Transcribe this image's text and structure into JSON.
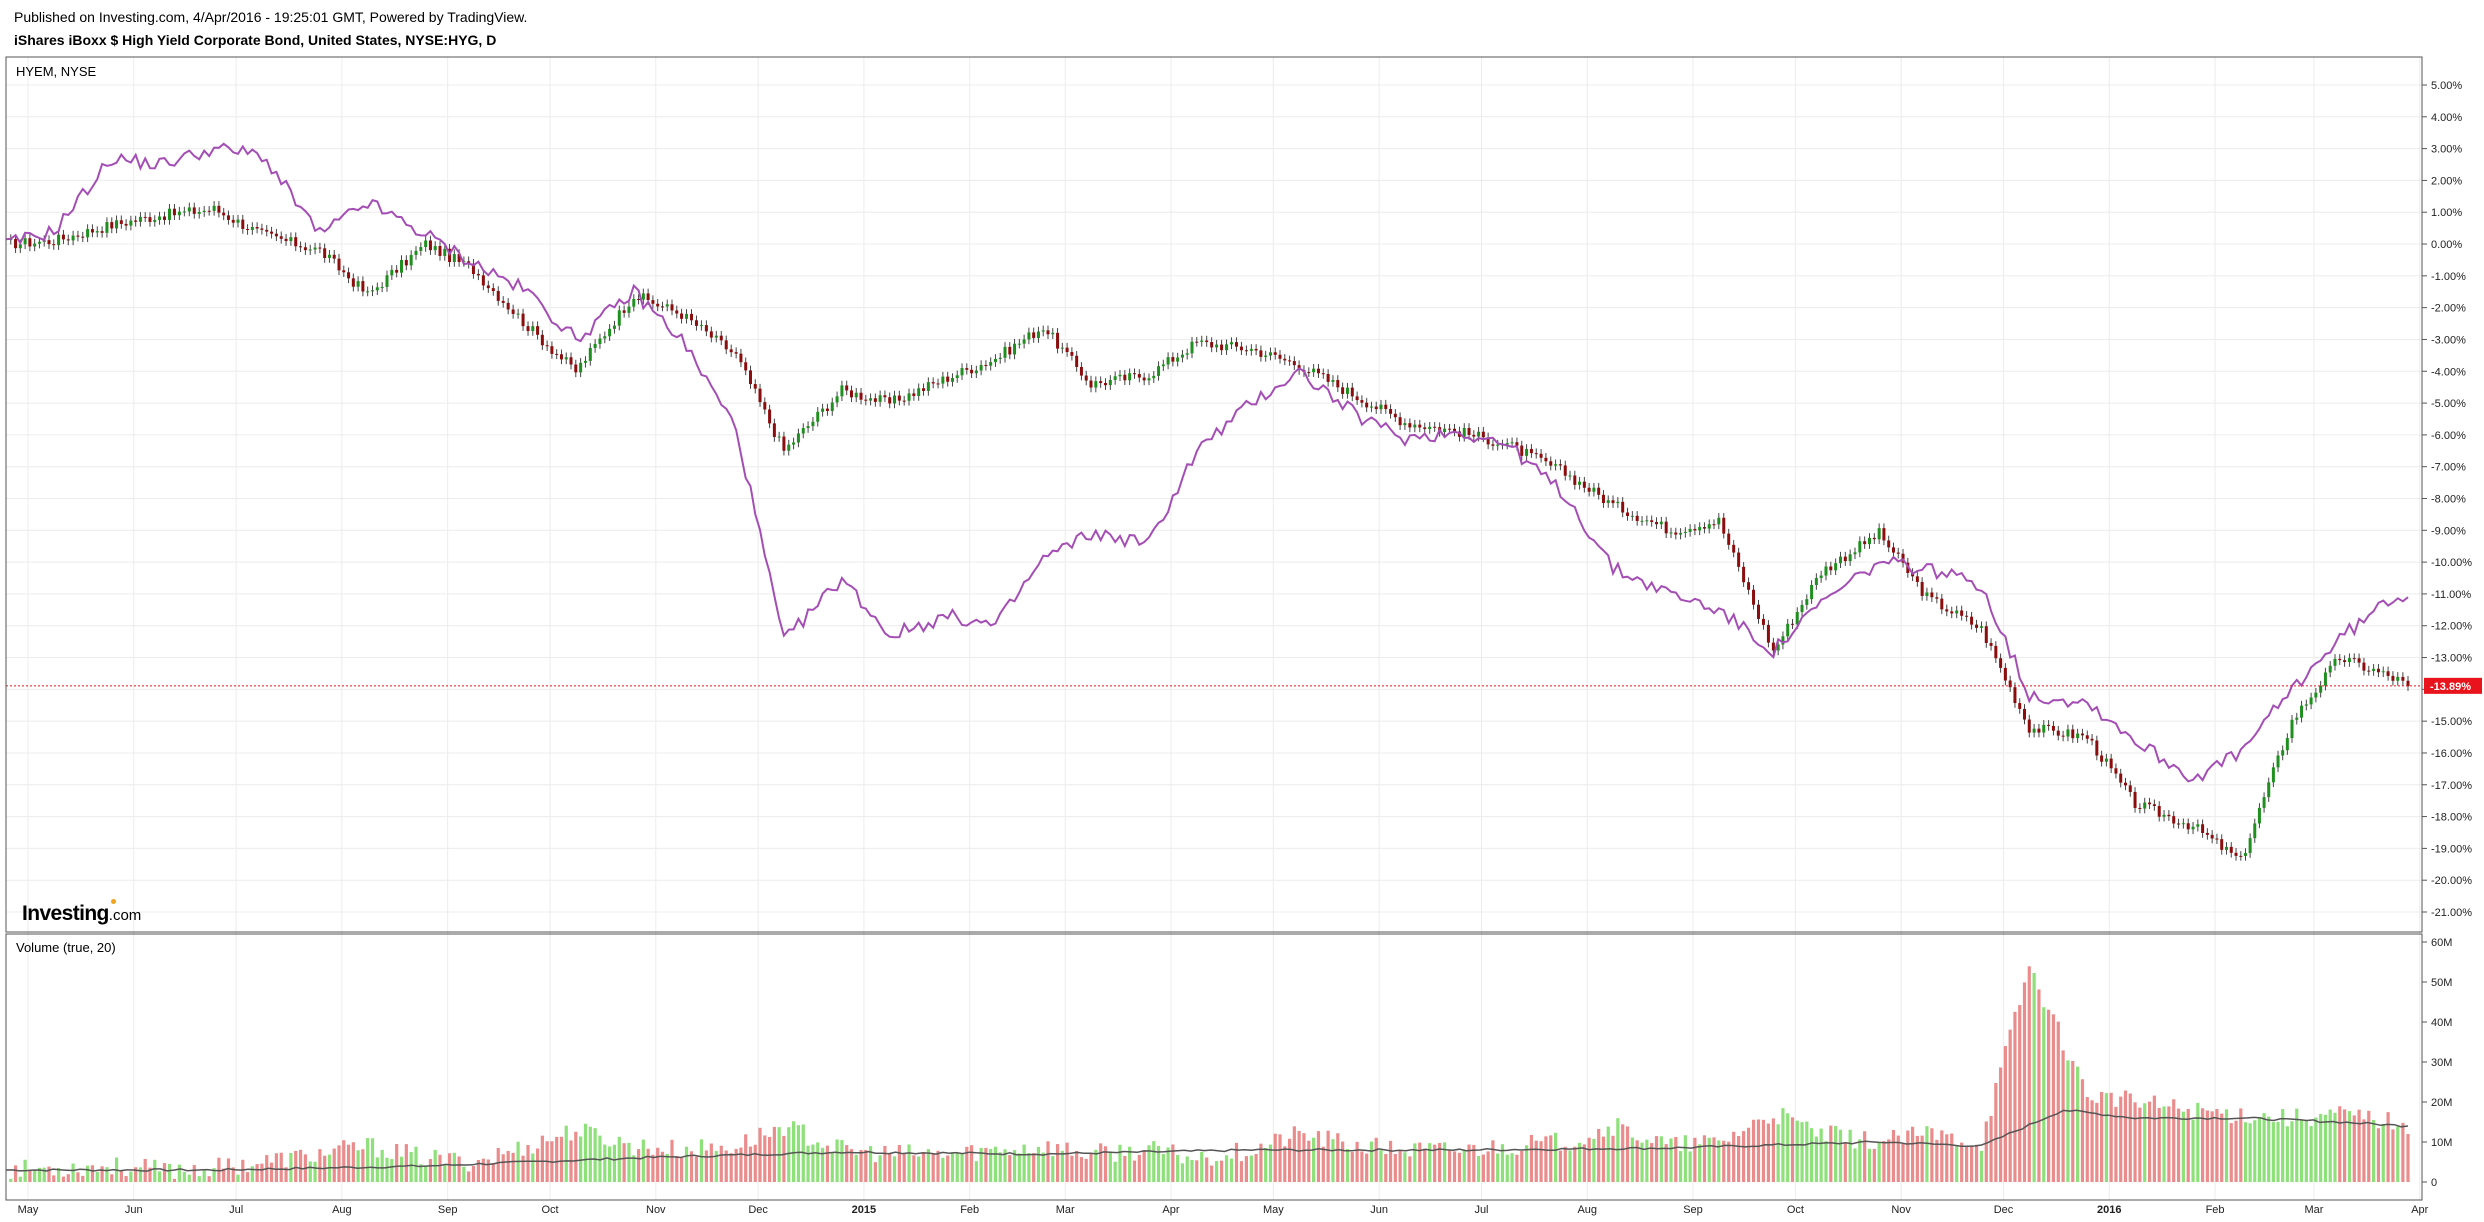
{
  "header": {
    "published": "Published on Investing.com, 4/Apr/2016 - 19:25:01 GMT, Powered by TradingView.",
    "title": "iShares iBoxx $ High Yield Corporate Bond, United States, NYSE:HYG, D"
  },
  "main_pane": {
    "label": "HYEM, NYSE"
  },
  "volume_pane": {
    "label": "Volume (true, 20)"
  },
  "logo": {
    "text": "Investing",
    "suffix": ".com"
  },
  "colors": {
    "up": "#1f8f1f",
    "down": "#8b0d0d",
    "compare_line": "#a44eb5",
    "volume_up": "#8ee07a",
    "volume_down": "#ea8c8c",
    "volume_ma": "#555555",
    "last_price": "#e8131b",
    "grid": "#ececec"
  },
  "chart_data": [
    {
      "type": "line",
      "title": "iShares iBoxx $ High Yield Corporate Bond, United States, NYSE:HYG, D",
      "xlabel": "",
      "ylabel": "",
      "y_unit": "%",
      "ylim": [
        -21.5,
        5.5
      ],
      "y_ticks": [
        "5.00%",
        "4.00%",
        "3.00%",
        "2.00%",
        "1.00%",
        "0.00%",
        "-1.00%",
        "-2.00%",
        "-3.00%",
        "-4.00%",
        "-5.00%",
        "-6.00%",
        "-7.00%",
        "-8.00%",
        "-9.00%",
        "-10.00%",
        "-11.00%",
        "-12.00%",
        "-13.00%",
        "-14.00%",
        "-15.00%",
        "-16.00%",
        "-17.00%",
        "-18.00%",
        "-19.00%",
        "-20.00%",
        "-21.00%"
      ],
      "x_ticks": [
        "May",
        "Jun",
        "Jul",
        "Aug",
        "Sep",
        "Oct",
        "Nov",
        "Dec",
        "2015",
        "Feb",
        "Mar",
        "Apr",
        "May",
        "Jun",
        "Jul",
        "Aug",
        "Sep",
        "Oct",
        "Nov",
        "Dec",
        "2016",
        "Feb",
        "Mar",
        "Apr"
      ],
      "last_value_label": "-13.89%",
      "last_value": -13.89,
      "series": [
        {
          "name": "NYSE:HYG",
          "style": "candles",
          "x": [
            "2014-05-01",
            "2014-05-15",
            "2014-06-01",
            "2014-06-15",
            "2014-07-01",
            "2014-07-15",
            "2014-08-01",
            "2014-08-15",
            "2014-09-01",
            "2014-09-15",
            "2014-10-01",
            "2014-10-15",
            "2014-11-01",
            "2014-11-15",
            "2014-12-01",
            "2014-12-15",
            "2015-01-01",
            "2015-01-15",
            "2015-02-01",
            "2015-02-15",
            "2015-03-01",
            "2015-03-15",
            "2015-04-01",
            "2015-04-15",
            "2015-05-01",
            "2015-05-15",
            "2015-06-01",
            "2015-06-15",
            "2015-07-01",
            "2015-07-15",
            "2015-08-01",
            "2015-08-15",
            "2015-09-01",
            "2015-09-15",
            "2015-10-01",
            "2015-10-15",
            "2015-11-01",
            "2015-11-15",
            "2015-12-01",
            "2015-12-15",
            "2016-01-01",
            "2016-01-15",
            "2016-02-01",
            "2016-02-15",
            "2016-03-01",
            "2016-03-15",
            "2016-04-01",
            "2016-04-04"
          ],
          "y": [
            0.0,
            0.1,
            0.6,
            0.9,
            1.1,
            0.3,
            -0.2,
            -1.6,
            0.0,
            -0.8,
            -2.6,
            -4.0,
            -1.6,
            -2.2,
            -3.5,
            -6.5,
            -4.6,
            -5.0,
            -4.2,
            -3.6,
            -2.6,
            -4.4,
            -4.1,
            -3.1,
            -3.3,
            -3.8,
            -4.8,
            -5.6,
            -5.9,
            -6.3,
            -7.2,
            -8.2,
            -9.0,
            -8.7,
            -12.8,
            -10.3,
            -9.1,
            -11.1,
            -12.1,
            -15.2,
            -15.5,
            -17.6,
            -18.3,
            -19.4,
            -15.0,
            -13.0,
            -13.7,
            -13.9
          ]
        },
        {
          "name": "HYEM, NYSE",
          "style": "line",
          "x": [
            "2014-05-01",
            "2014-05-15",
            "2014-06-01",
            "2014-06-15",
            "2014-07-01",
            "2014-07-15",
            "2014-08-01",
            "2014-08-15",
            "2014-09-01",
            "2014-09-15",
            "2014-10-01",
            "2014-10-15",
            "2014-11-01",
            "2014-11-15",
            "2014-12-01",
            "2014-12-15",
            "2015-01-01",
            "2015-01-15",
            "2015-02-01",
            "2015-02-15",
            "2015-03-01",
            "2015-03-15",
            "2015-04-01",
            "2015-04-15",
            "2015-05-01",
            "2015-05-15",
            "2015-06-01",
            "2015-06-15",
            "2015-07-01",
            "2015-07-15",
            "2015-08-01",
            "2015-08-15",
            "2015-09-01",
            "2015-09-15",
            "2015-10-01",
            "2015-10-15",
            "2015-11-01",
            "2015-11-15",
            "2015-12-01",
            "2015-12-15",
            "2016-01-01",
            "2016-01-15",
            "2016-02-01",
            "2016-02-15",
            "2016-03-01",
            "2016-03-15",
            "2016-04-01",
            "2016-04-04"
          ],
          "y": [
            0.0,
            0.4,
            2.7,
            2.5,
            3.0,
            2.8,
            0.3,
            1.3,
            0.3,
            -0.6,
            -1.5,
            -3.0,
            -1.5,
            -3.0,
            -5.8,
            -12.5,
            -10.5,
            -12.3,
            -11.7,
            -12.0,
            -9.9,
            -9.1,
            -9.4,
            -6.5,
            -5.0,
            -4.0,
            -5.4,
            -6.1,
            -5.9,
            -6.3,
            -7.9,
            -10.2,
            -11.0,
            -11.5,
            -12.8,
            -11.3,
            -10.0,
            -10.2,
            -10.7,
            -14.2,
            -14.4,
            -15.6,
            -16.8,
            -16.0,
            -14.0,
            -12.4,
            -11.0,
            -11.1
          ]
        }
      ]
    },
    {
      "type": "bar",
      "title": "Volume (true, 20)",
      "xlabel": "",
      "ylabel": "",
      "ylim": [
        0,
        60000000
      ],
      "y_ticks": [
        "60M",
        "50M",
        "40M",
        "30M",
        "20M",
        "10M",
        "0"
      ],
      "series": [
        {
          "name": "Volume",
          "x": [
            "2014-05-01",
            "2014-05-15",
            "2014-06-01",
            "2014-06-15",
            "2014-07-01",
            "2014-07-15",
            "2014-08-01",
            "2014-08-15",
            "2014-09-01",
            "2014-09-15",
            "2014-10-01",
            "2014-10-15",
            "2014-11-01",
            "2014-11-15",
            "2014-12-01",
            "2014-12-15",
            "2015-01-01",
            "2015-01-15",
            "2015-02-01",
            "2015-02-15",
            "2015-03-01",
            "2015-03-15",
            "2015-04-01",
            "2015-04-15",
            "2015-05-01",
            "2015-05-15",
            "2015-06-01",
            "2015-06-15",
            "2015-07-01",
            "2015-07-15",
            "2015-08-01",
            "2015-08-15",
            "2015-09-01",
            "2015-09-15",
            "2015-10-01",
            "2015-10-15",
            "2015-11-01",
            "2015-11-15",
            "2015-12-01",
            "2015-12-15",
            "2016-01-01",
            "2016-01-15",
            "2016-02-01",
            "2016-02-15",
            "2016-03-01",
            "2016-03-15",
            "2016-04-01",
            "2016-04-04"
          ],
          "values": [
            3000000,
            3500000,
            4000000,
            3000000,
            3500000,
            5000000,
            7000000,
            9000000,
            6000000,
            5000000,
            9000000,
            13000000,
            9000000,
            8000000,
            9000000,
            14000000,
            8000000,
            7000000,
            7000000,
            8000000,
            9000000,
            7000000,
            8000000,
            6000000,
            8000000,
            12000000,
            9000000,
            8000000,
            8000000,
            9000000,
            10000000,
            14000000,
            9000000,
            10000000,
            17000000,
            12000000,
            10000000,
            12000000,
            10000000,
            54000000,
            22000000,
            20000000,
            18000000,
            17000000,
            16000000,
            17000000,
            15000000,
            12000000
          ]
        },
        {
          "name": "Volume MA 20",
          "x": [
            "2014-05-01",
            "2014-07-01",
            "2014-09-01",
            "2014-11-01",
            "2015-01-01",
            "2015-03-01",
            "2015-05-01",
            "2015-07-01",
            "2015-09-01",
            "2015-11-01",
            "2015-12-01",
            "2015-12-25",
            "2016-01-15",
            "2016-02-15",
            "2016-03-15",
            "2016-04-04"
          ],
          "values": [
            3000000,
            3000000,
            4000000,
            6000000,
            7500000,
            7000000,
            8000000,
            8000000,
            8500000,
            10000000,
            9000000,
            18000000,
            16000000,
            16000000,
            15000000,
            14000000
          ]
        }
      ]
    }
  ]
}
